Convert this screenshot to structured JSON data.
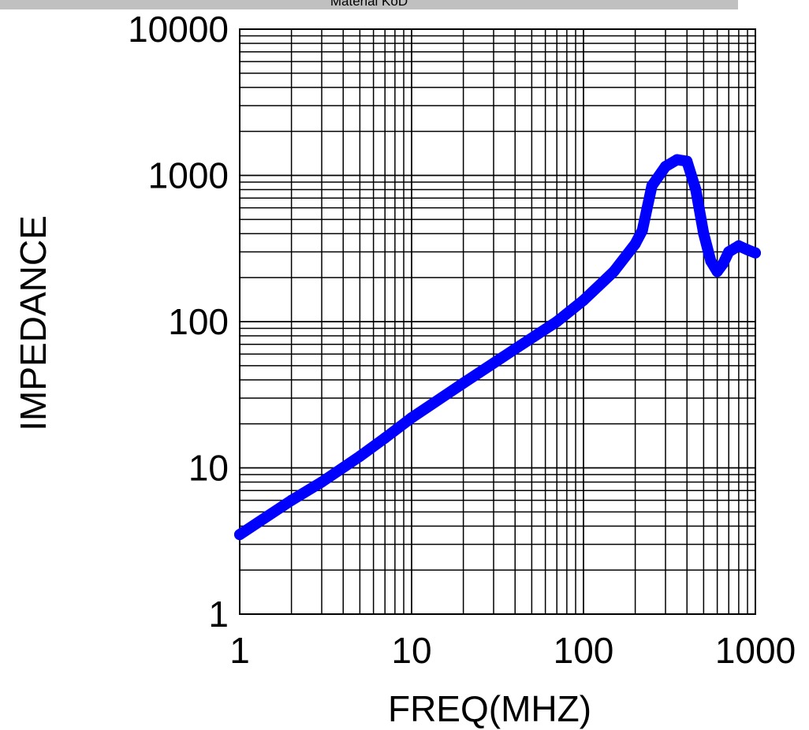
{
  "header": {
    "title": "Material KoD"
  },
  "chart_data": {
    "type": "line",
    "title": "Material KoD",
    "xlabel": "FREQ(MHZ)",
    "ylabel": "IMPEDANCE",
    "x_scale": "log",
    "y_scale": "log",
    "xlim": [
      1,
      1000
    ],
    "ylim": [
      1,
      10000
    ],
    "x_ticks": [
      "1",
      "10",
      "100",
      "1000"
    ],
    "y_ticks": [
      "1",
      "10",
      "100",
      "1000",
      "10000"
    ],
    "grid": true,
    "legend": "none",
    "line_color": "#0000ff",
    "series": [
      {
        "x": [
          1,
          2,
          3,
          5,
          7,
          10,
          20,
          40,
          70,
          100,
          150,
          200,
          220,
          250,
          300,
          350,
          400,
          450,
          500,
          550,
          600,
          650,
          700,
          800,
          900,
          1000
        ],
        "y": [
          3.5,
          6,
          8,
          12,
          16,
          22,
          38,
          65,
          100,
          140,
          220,
          340,
          420,
          850,
          1150,
          1280,
          1250,
          800,
          400,
          260,
          220,
          250,
          300,
          330,
          310,
          295
        ]
      }
    ]
  }
}
